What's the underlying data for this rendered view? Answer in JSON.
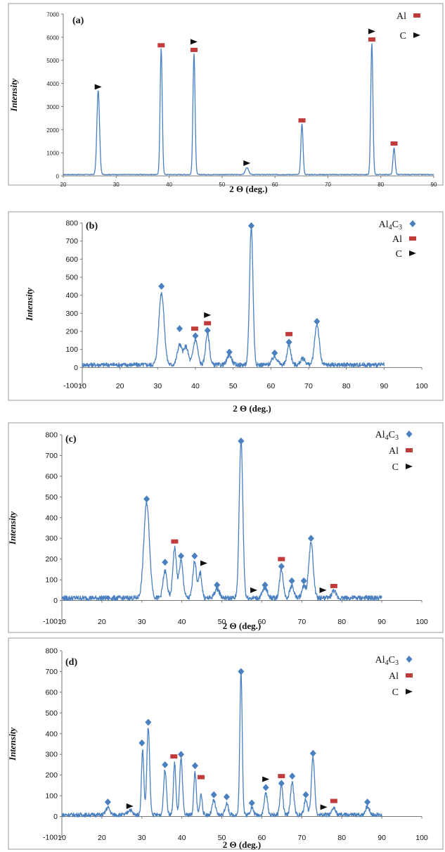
{
  "colors": {
    "series": "#4a80c0",
    "al": "#c23b3b",
    "al4c3": "#4a80c0",
    "c": "#111111",
    "frame": "#9a9a9a"
  },
  "chart_data": [
    {
      "type": "line",
      "panel_label": "(a)",
      "xlabel": "2 Θ (deg.)",
      "ylabel": "Intensity",
      "xlim": [
        20,
        90
      ],
      "ylim": [
        0,
        7000
      ],
      "xticks": [
        20,
        30,
        40,
        50,
        60,
        70,
        80,
        90
      ],
      "yticks": [
        0,
        1000,
        2000,
        3000,
        4000,
        5000,
        6000,
        7000
      ],
      "legend": {
        "placement": "top-right",
        "entries": [
          {
            "label": "Al",
            "marker": "al"
          },
          {
            "label": "C",
            "marker": "c"
          }
        ]
      },
      "baseline": 60,
      "noise": 15,
      "peaks": [
        {
          "x": 26.6,
          "y": 3650,
          "w": 0.25
        },
        {
          "x": 38.5,
          "y": 5450,
          "w": 0.2
        },
        {
          "x": 44.7,
          "y": 5250,
          "w": 0.2
        },
        {
          "x": 54.7,
          "y": 300,
          "w": 0.3
        },
        {
          "x": 65.1,
          "y": 2200,
          "w": 0.2
        },
        {
          "x": 78.3,
          "y": 5700,
          "w": 0.2
        },
        {
          "x": 82.5,
          "y": 1150,
          "w": 0.2
        }
      ],
      "markers": [
        {
          "type": "c",
          "x": 26.6,
          "y": 3850
        },
        {
          "type": "al",
          "x": 38.5,
          "y": 5650
        },
        {
          "type": "c",
          "x": 44.7,
          "y": 5800
        },
        {
          "type": "al",
          "x": 44.7,
          "y": 5450
        },
        {
          "type": "c",
          "x": 54.7,
          "y": 550
        },
        {
          "type": "al",
          "x": 65.1,
          "y": 2400
        },
        {
          "type": "c",
          "x": 78.3,
          "y": 6250
        },
        {
          "type": "al",
          "x": 78.3,
          "y": 5900
        },
        {
          "type": "al",
          "x": 82.5,
          "y": 1400
        }
      ]
    },
    {
      "type": "line",
      "panel_label": "(b)",
      "xlabel": "2 Θ (deg.)",
      "ylabel": "Intensity",
      "xlim": [
        10,
        100
      ],
      "ylim": [
        -100,
        800
      ],
      "xticks": [
        10,
        20,
        30,
        40,
        50,
        60,
        70,
        80,
        90,
        100
      ],
      "yticks": [
        -100,
        0,
        100,
        200,
        300,
        400,
        500,
        600,
        700,
        800
      ],
      "data_range": [
        10,
        90
      ],
      "legend": {
        "placement": "top-right",
        "entries": [
          {
            "label": "Al4C3",
            "marker": "al4c3"
          },
          {
            "label": "Al",
            "marker": "al"
          },
          {
            "label": "C",
            "marker": "c"
          }
        ]
      },
      "baseline": 15,
      "noise": 12,
      "peaks": [
        {
          "x": 31.0,
          "y": 400,
          "w": 0.7
        },
        {
          "x": 35.8,
          "y": 110,
          "w": 0.6
        },
        {
          "x": 37.5,
          "y": 100,
          "w": 0.6
        },
        {
          "x": 40.0,
          "y": 140,
          "w": 0.6
        },
        {
          "x": 43.2,
          "y": 175,
          "w": 0.5
        },
        {
          "x": 49.0,
          "y": 55,
          "w": 0.6
        },
        {
          "x": 54.8,
          "y": 770,
          "w": 0.45
        },
        {
          "x": 61.0,
          "y": 45,
          "w": 0.7
        },
        {
          "x": 64.8,
          "y": 110,
          "w": 0.5
        },
        {
          "x": 68.5,
          "y": 35,
          "w": 0.6
        },
        {
          "x": 72.2,
          "y": 225,
          "w": 0.6
        }
      ],
      "markers": [
        {
          "type": "al4c3",
          "x": 31.0,
          "y": 450
        },
        {
          "type": "al4c3",
          "x": 35.8,
          "y": 215
        },
        {
          "type": "al",
          "x": 39.8,
          "y": 215
        },
        {
          "type": "al4c3",
          "x": 40.0,
          "y": 175
        },
        {
          "type": "c",
          "x": 43.2,
          "y": 290
        },
        {
          "type": "al",
          "x": 43.2,
          "y": 245
        },
        {
          "type": "al4c3",
          "x": 43.2,
          "y": 205
        },
        {
          "type": "al4c3",
          "x": 49.0,
          "y": 85
        },
        {
          "type": "al4c3",
          "x": 54.8,
          "y": 785
        },
        {
          "type": "al4c3",
          "x": 61.0,
          "y": 80
        },
        {
          "type": "al",
          "x": 64.8,
          "y": 185
        },
        {
          "type": "al4c3",
          "x": 64.8,
          "y": 140
        },
        {
          "type": "al4c3",
          "x": 72.2,
          "y": 255
        }
      ]
    },
    {
      "type": "line",
      "panel_label": "(c)",
      "xlabel": "2 Θ (deg.)",
      "ylabel": "Intensity",
      "xlim": [
        10,
        100
      ],
      "ylim": [
        -100,
        800
      ],
      "xticks": [
        10,
        20,
        30,
        40,
        50,
        60,
        70,
        80,
        90,
        100
      ],
      "yticks": [
        -100,
        0,
        100,
        200,
        300,
        400,
        500,
        600,
        700,
        800
      ],
      "data_range": [
        10,
        90
      ],
      "legend": {
        "placement": "top-right",
        "entries": [
          {
            "label": "Al4C3",
            "marker": "al4c3"
          },
          {
            "label": "Al",
            "marker": "al"
          },
          {
            "label": "C",
            "marker": "c"
          }
        ]
      },
      "baseline": 12,
      "noise": 12,
      "peaks": [
        {
          "x": 31.2,
          "y": 460,
          "w": 0.7
        },
        {
          "x": 35.8,
          "y": 130,
          "w": 0.5
        },
        {
          "x": 38.2,
          "y": 240,
          "w": 0.45
        },
        {
          "x": 39.8,
          "y": 180,
          "w": 0.5
        },
        {
          "x": 43.2,
          "y": 180,
          "w": 0.45
        },
        {
          "x": 44.6,
          "y": 120,
          "w": 0.4
        },
        {
          "x": 48.8,
          "y": 45,
          "w": 0.6
        },
        {
          "x": 54.8,
          "y": 760,
          "w": 0.45
        },
        {
          "x": 60.8,
          "y": 50,
          "w": 0.6
        },
        {
          "x": 64.9,
          "y": 140,
          "w": 0.45
        },
        {
          "x": 67.5,
          "y": 60,
          "w": 0.5
        },
        {
          "x": 70.5,
          "y": 55,
          "w": 0.5
        },
        {
          "x": 72.3,
          "y": 270,
          "w": 0.55
        },
        {
          "x": 78.0,
          "y": 35,
          "w": 0.5
        }
      ],
      "markers": [
        {
          "type": "al4c3",
          "x": 31.2,
          "y": 490
        },
        {
          "type": "al4c3",
          "x": 35.8,
          "y": 185
        },
        {
          "type": "al",
          "x": 38.2,
          "y": 285
        },
        {
          "type": "al4c3",
          "x": 39.8,
          "y": 215
        },
        {
          "type": "al4c3",
          "x": 43.2,
          "y": 215
        },
        {
          "type": "c",
          "x": 45.5,
          "y": 180
        },
        {
          "type": "al4c3",
          "x": 48.8,
          "y": 75
        },
        {
          "type": "al4c3",
          "x": 54.8,
          "y": 770
        },
        {
          "type": "c",
          "x": 58.0,
          "y": 50
        },
        {
          "type": "al4c3",
          "x": 60.8,
          "y": 75
        },
        {
          "type": "al",
          "x": 64.9,
          "y": 200
        },
        {
          "type": "al4c3",
          "x": 64.9,
          "y": 165
        },
        {
          "type": "al4c3",
          "x": 67.5,
          "y": 95
        },
        {
          "type": "al4c3",
          "x": 70.5,
          "y": 95
        },
        {
          "type": "al4c3",
          "x": 72.3,
          "y": 300
        },
        {
          "type": "c",
          "x": 75.3,
          "y": 50
        },
        {
          "type": "al",
          "x": 78.0,
          "y": 70
        }
      ]
    },
    {
      "type": "line",
      "panel_label": "(d)",
      "xlabel": "2 Θ (deg.)",
      "ylabel": "Intensity",
      "xlim": [
        10,
        100
      ],
      "ylim": [
        -100,
        800
      ],
      "xticks": [
        10,
        20,
        30,
        40,
        50,
        60,
        70,
        80,
        90,
        100
      ],
      "yticks": [
        -100,
        0,
        100,
        200,
        300,
        400,
        500,
        600,
        700,
        800
      ],
      "data_range": [
        10,
        90
      ],
      "legend": {
        "placement": "top-right",
        "entries": [
          {
            "label": "Al4C3",
            "marker": "al4c3"
          },
          {
            "label": "Al",
            "marker": "al"
          },
          {
            "label": "C",
            "marker": "c"
          }
        ]
      },
      "baseline": 8,
      "noise": 10,
      "peaks": [
        {
          "x": 21.5,
          "y": 35,
          "w": 0.5
        },
        {
          "x": 27.0,
          "y": 25,
          "w": 0.5
        },
        {
          "x": 30.2,
          "y": 310,
          "w": 0.3
        },
        {
          "x": 31.6,
          "y": 420,
          "w": 0.35
        },
        {
          "x": 35.8,
          "y": 220,
          "w": 0.35
        },
        {
          "x": 38.2,
          "y": 250,
          "w": 0.3
        },
        {
          "x": 39.8,
          "y": 270,
          "w": 0.35
        },
        {
          "x": 43.3,
          "y": 210,
          "w": 0.3
        },
        {
          "x": 44.8,
          "y": 100,
          "w": 0.3
        },
        {
          "x": 48.0,
          "y": 70,
          "w": 0.4
        },
        {
          "x": 51.2,
          "y": 55,
          "w": 0.4
        },
        {
          "x": 54.8,
          "y": 690,
          "w": 0.3
        },
        {
          "x": 57.5,
          "y": 35,
          "w": 0.4
        },
        {
          "x": 61.0,
          "y": 105,
          "w": 0.4
        },
        {
          "x": 64.9,
          "y": 150,
          "w": 0.35
        },
        {
          "x": 67.6,
          "y": 160,
          "w": 0.4
        },
        {
          "x": 71.0,
          "y": 75,
          "w": 0.4
        },
        {
          "x": 72.8,
          "y": 275,
          "w": 0.4
        },
        {
          "x": 78.0,
          "y": 35,
          "w": 0.4
        },
        {
          "x": 86.4,
          "y": 40,
          "w": 0.5
        }
      ],
      "markers": [
        {
          "type": "al4c3",
          "x": 21.5,
          "y": 70
        },
        {
          "type": "c",
          "x": 27.0,
          "y": 50
        },
        {
          "type": "al4c3",
          "x": 30.0,
          "y": 355
        },
        {
          "type": "al4c3",
          "x": 31.6,
          "y": 455
        },
        {
          "type": "al4c3",
          "x": 35.8,
          "y": 250
        },
        {
          "type": "al",
          "x": 38.0,
          "y": 290
        },
        {
          "type": "al4c3",
          "x": 39.8,
          "y": 300
        },
        {
          "type": "al4c3",
          "x": 43.3,
          "y": 245
        },
        {
          "type": "al",
          "x": 44.8,
          "y": 190
        },
        {
          "type": "al4c3",
          "x": 48.0,
          "y": 105
        },
        {
          "type": "al4c3",
          "x": 51.2,
          "y": 95
        },
        {
          "type": "al4c3",
          "x": 54.8,
          "y": 700
        },
        {
          "type": "al4c3",
          "x": 57.5,
          "y": 65
        },
        {
          "type": "c",
          "x": 61.0,
          "y": 180
        },
        {
          "type": "al4c3",
          "x": 61.0,
          "y": 140
        },
        {
          "type": "al",
          "x": 64.9,
          "y": 195
        },
        {
          "type": "al4c3",
          "x": 64.9,
          "y": 160
        },
        {
          "type": "al4c3",
          "x": 67.6,
          "y": 195
        },
        {
          "type": "al4c3",
          "x": 71.0,
          "y": 105
        },
        {
          "type": "al4c3",
          "x": 72.8,
          "y": 305
        },
        {
          "type": "c",
          "x": 75.5,
          "y": 45
        },
        {
          "type": "al",
          "x": 78.0,
          "y": 75
        },
        {
          "type": "al4c3",
          "x": 86.4,
          "y": 70
        }
      ]
    }
  ]
}
